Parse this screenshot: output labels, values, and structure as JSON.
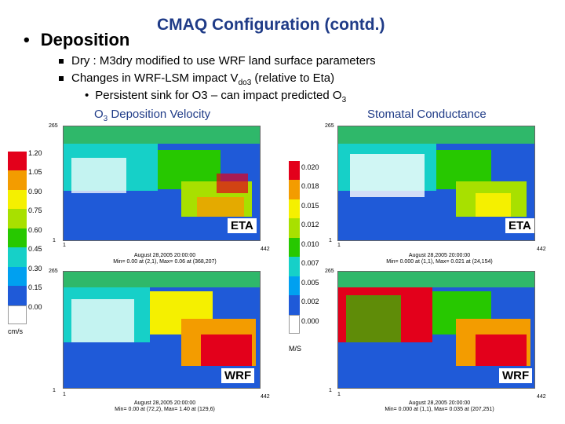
{
  "slide": {
    "title": "CMAQ Configuration (contd.)",
    "section_bullet": "•",
    "section": "Deposition",
    "bullets": [
      {
        "text": "Dry : M3dry modified to use WRF land surface parameters"
      },
      {
        "pre": "Changes in WRF-LSM impact V",
        "sub": "do3",
        "post": " (relative to Eta)"
      }
    ],
    "subbullet": {
      "bullet": "•",
      "pre": "Persistent sink for O3 – can impact predicted O",
      "sub": "3"
    }
  },
  "panels": {
    "left_title": {
      "pre": "O",
      "sub": "3",
      "post": " Deposition Velocity"
    },
    "right_title": "Stomatal Conductance",
    "labels": {
      "eta": "ETA",
      "wrf": "WRF"
    },
    "captions": {
      "top_left": {
        "date": "August 28,2005 20:00:00",
        "range": "Min= 0.00 at (2,1), Max= 0.06 at (368,207)"
      },
      "top_right": {
        "date": "August 28,2005 20:00:00",
        "range": "Min= 0.000 at (1,1), Max= 0.021 at (24,154)"
      },
      "bottom_left": {
        "date": "August 28,2005 20:00:00",
        "range": "Min= 0.00 at (72,2), Max= 1.40 at (129,6)"
      },
      "bottom_right": {
        "date": "August 28,2005 20:00:00",
        "range": "Min= 0.000 at (1,1), Max= 0.035 at (207,251)"
      }
    },
    "ticks": {
      "y_top": "265",
      "y_one": "1",
      "x_one": "1",
      "x_max": "442"
    }
  },
  "colorbars": {
    "left": {
      "labels": [
        "1.20",
        "1.05",
        "0.90",
        "0.75",
        "0.60",
        "0.45",
        "0.30",
        "0.15",
        "0.00"
      ],
      "unit": "cm/s",
      "colors": [
        "#e3001b",
        "#f39c00",
        "#f5f000",
        "#a8e000",
        "#27c800",
        "#16d0c8",
        "#00a0f0",
        "#1f5ad8",
        "#ffffff"
      ]
    },
    "middle": {
      "labels": [
        "0.020",
        "0.018",
        "0.015",
        "0.012",
        "0.010",
        "0.007",
        "0.005",
        "0.002",
        "0.000"
      ],
      "unit": "M/S",
      "colors": [
        "#e3001b",
        "#f39c00",
        "#f5f000",
        "#a8e000",
        "#27c800",
        "#16d0c8",
        "#00a0f0",
        "#1f5ad8",
        "#ffffff"
      ]
    }
  }
}
